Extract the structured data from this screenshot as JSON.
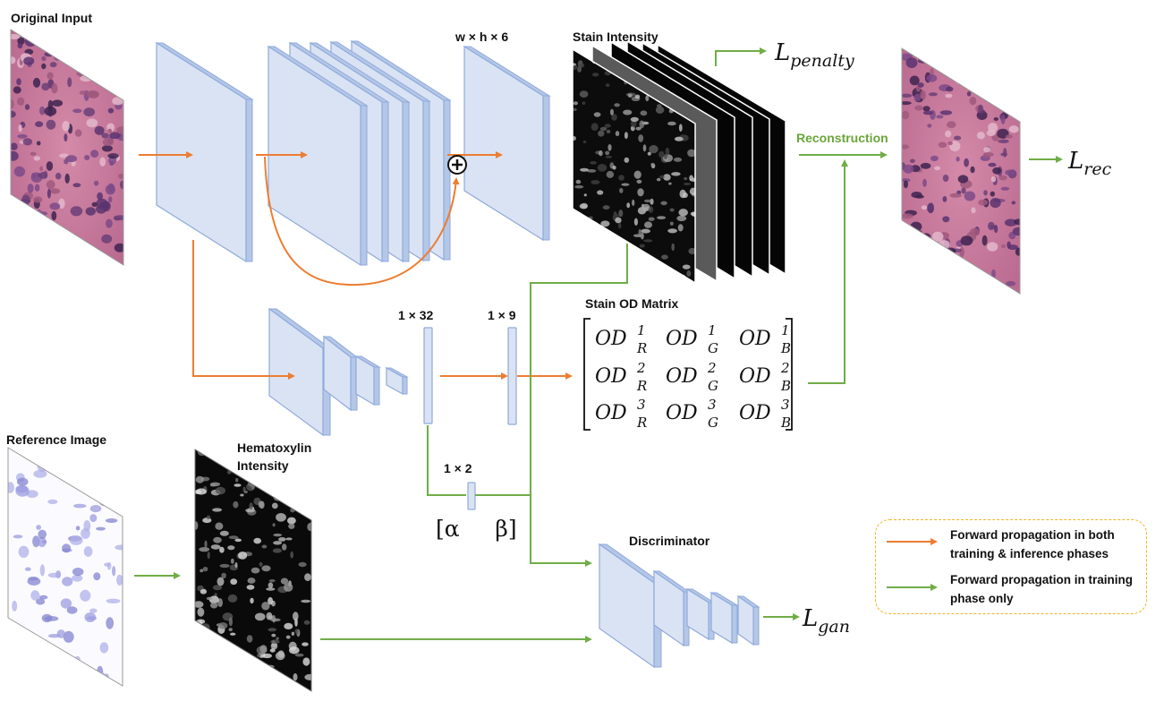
{
  "labels": {
    "original_input": "Original Input",
    "reference_image": "Reference Image",
    "hematoxylin_line1": "Hematoxylin",
    "hematoxylin_line2": "Intensity",
    "whx6": "w × h × 6",
    "stain_intensity": "Stain Intensity",
    "reconstruction": "Reconstruction",
    "stain_od_matrix": "Stain OD Matrix",
    "dim_1x32": "1 × 32",
    "dim_1x9": "1 × 9",
    "dim_1x2": "1 × 2",
    "discriminator": "Discriminator",
    "alpha_beta": "[α     β]",
    "plus": "+"
  },
  "losses": {
    "penalty": {
      "base": "L",
      "sub": "penalty"
    },
    "rec": {
      "base": "L",
      "sub": "rec"
    },
    "gan": {
      "base": "L",
      "sub": "gan"
    }
  },
  "matrix": {
    "base": "OD",
    "rows": [
      [
        {
          "sup": "1",
          "sub": "R"
        },
        {
          "sup": "1",
          "sub": "G"
        },
        {
          "sup": "1",
          "sub": "B"
        }
      ],
      [
        {
          "sup": "2",
          "sub": "R"
        },
        {
          "sup": "2",
          "sub": "G"
        },
        {
          "sup": "2",
          "sub": "B"
        }
      ],
      [
        {
          "sup": "3",
          "sub": "R"
        },
        {
          "sup": "3",
          "sub": "G"
        },
        {
          "sup": "3",
          "sub": "B"
        }
      ]
    ]
  },
  "legend": {
    "orange": "Forward propagation in both training & inference phases",
    "green": "Forward propagation in training phase only"
  },
  "colors": {
    "orange": "#ed7d31",
    "green": "#70ad47",
    "layer_fill": "#dae3f3",
    "layer_edge": "#8faadc",
    "legend_border": "#f0b323",
    "he_pink": "#c9809f",
    "he_purple": "#6b3f78",
    "ref_purple": "#8f8fd6"
  }
}
